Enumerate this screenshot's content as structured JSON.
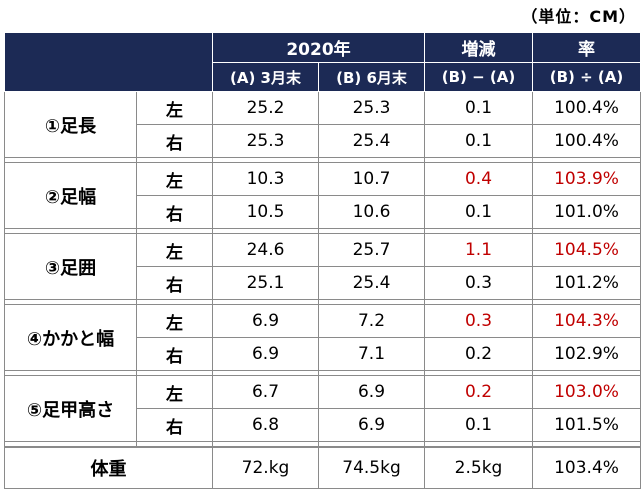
{
  "unit_label": "（単位：CM）",
  "header": {
    "year": "2020年",
    "diff": "増減",
    "rate": "率",
    "col_a": "(A) 3月末",
    "col_b": "(B) 6月末",
    "diff_formula": "(B) − (A)",
    "rate_formula": "(B) ÷ (A)"
  },
  "groups": [
    {
      "label": "①足長",
      "rows": [
        {
          "side": "左",
          "a": "25.2",
          "b": "25.3",
          "diff": "0.1",
          "rate": "100.4%",
          "highlight": false
        },
        {
          "side": "右",
          "a": "25.3",
          "b": "25.4",
          "diff": "0.1",
          "rate": "100.4%",
          "highlight": false
        }
      ]
    },
    {
      "label": "②足幅",
      "rows": [
        {
          "side": "左",
          "a": "10.3",
          "b": "10.7",
          "diff": "0.4",
          "rate": "103.9%",
          "highlight": true
        },
        {
          "side": "右",
          "a": "10.5",
          "b": "10.6",
          "diff": "0.1",
          "rate": "101.0%",
          "highlight": false
        }
      ]
    },
    {
      "label": "③足囲",
      "rows": [
        {
          "side": "左",
          "a": "24.6",
          "b": "25.7",
          "diff": "1.1",
          "rate": "104.5%",
          "highlight": true
        },
        {
          "side": "右",
          "a": "25.1",
          "b": "25.4",
          "diff": "0.3",
          "rate": "101.2%",
          "highlight": false
        }
      ]
    },
    {
      "label": "④かかと幅",
      "rows": [
        {
          "side": "左",
          "a": "6.9",
          "b": "7.2",
          "diff": "0.3",
          "rate": "104.3%",
          "highlight": true
        },
        {
          "side": "右",
          "a": "6.9",
          "b": "7.1",
          "diff": "0.2",
          "rate": "102.9%",
          "highlight": false
        }
      ]
    },
    {
      "label": "⑤足甲高さ",
      "rows": [
        {
          "side": "左",
          "a": "6.7",
          "b": "6.9",
          "diff": "0.2",
          "rate": "103.0%",
          "highlight": true
        },
        {
          "side": "右",
          "a": "6.8",
          "b": "6.9",
          "diff": "0.1",
          "rate": "101.5%",
          "highlight": false
        }
      ]
    }
  ],
  "weight": {
    "label": "体重",
    "a": "72.kg",
    "b": "74.5kg",
    "diff": "2.5kg",
    "rate": "103.4%"
  },
  "colors": {
    "header_bg": "#1c2a55",
    "header_text": "#ffffff",
    "highlight": "#c00000",
    "border": "#8a8a8a"
  }
}
